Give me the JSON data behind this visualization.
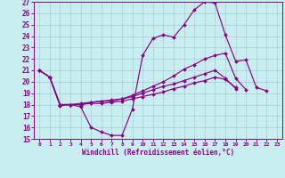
{
  "xlabel": "Windchill (Refroidissement éolien,°C)",
  "xlim": [
    -0.5,
    23.5
  ],
  "ylim": [
    15,
    27
  ],
  "xticks": [
    0,
    1,
    2,
    3,
    4,
    5,
    6,
    7,
    8,
    9,
    10,
    11,
    12,
    13,
    14,
    15,
    16,
    17,
    18,
    19,
    20,
    21,
    22,
    23
  ],
  "yticks": [
    15,
    16,
    17,
    18,
    19,
    20,
    21,
    22,
    23,
    24,
    25,
    26,
    27
  ],
  "bg_color": "#c8eef0",
  "line_color": "#880088",
  "grid_color": "#a8ccd8",
  "line1_x": [
    0,
    1,
    2,
    3,
    4,
    5,
    6,
    7,
    8,
    9,
    10,
    11,
    12,
    13,
    14,
    15,
    16,
    17,
    18,
    19,
    20,
    21,
    22,
    23
  ],
  "line1_y": [
    21.0,
    20.4,
    17.9,
    18.0,
    17.8,
    16.0,
    15.6,
    15.3,
    15.3,
    17.6,
    22.3,
    23.8,
    24.1,
    23.9,
    25.0,
    26.3,
    27.0,
    26.9,
    24.1,
    21.8,
    21.9,
    19.5,
    19.2,
    9999
  ],
  "line2_x": [
    0,
    1,
    2,
    3,
    4,
    5,
    6,
    7,
    8,
    9,
    10,
    11,
    12,
    13,
    14,
    15,
    16,
    17,
    18,
    19,
    20,
    21,
    22,
    23
  ],
  "line2_y": [
    21.0,
    20.4,
    18.0,
    18.0,
    18.0,
    18.2,
    18.3,
    18.4,
    18.5,
    18.8,
    19.2,
    19.6,
    20.0,
    20.5,
    21.1,
    21.5,
    22.0,
    22.3,
    22.5,
    20.3,
    19.3,
    9999,
    9999,
    9999
  ],
  "line3_x": [
    0,
    1,
    2,
    3,
    4,
    5,
    6,
    7,
    8,
    9,
    10,
    11,
    12,
    13,
    14,
    15,
    16,
    17,
    18,
    19,
    20,
    21,
    22,
    23
  ],
  "line3_y": [
    21.0,
    20.4,
    18.0,
    18.0,
    18.1,
    18.2,
    18.3,
    18.3,
    18.5,
    18.7,
    19.0,
    19.3,
    19.6,
    19.8,
    20.1,
    20.4,
    20.7,
    21.0,
    20.3,
    19.4,
    9999,
    9999,
    9999,
    9999
  ],
  "line4_x": [
    0,
    1,
    2,
    3,
    4,
    5,
    6,
    7,
    8,
    9,
    10,
    11,
    12,
    13,
    14,
    15,
    16,
    17,
    18,
    19,
    20,
    21,
    22,
    23
  ],
  "line4_y": [
    21.0,
    20.4,
    18.0,
    18.0,
    18.0,
    18.1,
    18.1,
    18.2,
    18.3,
    18.5,
    18.7,
    18.9,
    19.1,
    19.4,
    19.6,
    19.9,
    20.1,
    20.4,
    20.2,
    19.5,
    9999,
    9999,
    9999,
    9999
  ]
}
